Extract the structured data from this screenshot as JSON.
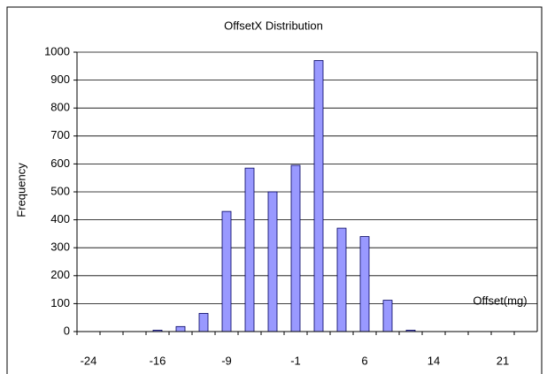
{
  "chart_data": {
    "type": "bar",
    "title": "OffsetX Distribution",
    "y_label": "Frequency",
    "x_label": "Offset(mg)",
    "categories": [
      -24,
      null,
      null,
      -16,
      null,
      null,
      -9,
      null,
      null,
      -1,
      null,
      null,
      6,
      null,
      null,
      14,
      null,
      null,
      21,
      null
    ],
    "values": [
      0,
      0,
      0,
      5,
      18,
      65,
      430,
      585,
      500,
      595,
      970,
      370,
      340,
      112,
      5,
      0,
      0,
      0,
      0,
      0
    ],
    "color": "#9999ff",
    "ylim": [
      0,
      1000
    ],
    "yticks": [
      0,
      100,
      200,
      300,
      400,
      500,
      600,
      700,
      800,
      900,
      1000
    ],
    "grid": true
  }
}
